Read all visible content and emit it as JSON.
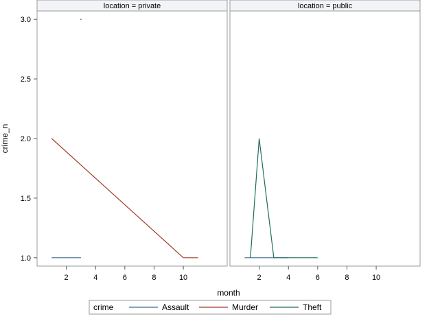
{
  "chart_data": {
    "type": "line",
    "xlabel": "month",
    "ylabel": "crime_n",
    "xlim": [
      0,
      13
    ],
    "ylim": [
      0.93,
      3.07
    ],
    "x_ticks": [
      2,
      4,
      6,
      8,
      10
    ],
    "y_ticks": [
      1.0,
      1.5,
      2.0,
      2.5,
      3.0
    ],
    "y_tick_labels": [
      "1.0",
      "1.5",
      "2.0",
      "2.5",
      "3.0"
    ],
    "grid": false,
    "legend_position": "bottom",
    "legend": {
      "title": "crime",
      "entries": [
        {
          "name": "Assault",
          "color": "#3a6e8f"
        },
        {
          "name": "Murder",
          "color": "#a23b2a"
        },
        {
          "name": "Theft",
          "color": "#1f6b5c"
        }
      ]
    },
    "panels": [
      {
        "title": "location = private",
        "series": [
          {
            "name": "Assault",
            "color": "#3a6e8f",
            "x": [
              1,
              3
            ],
            "y": [
              1,
              1
            ]
          },
          {
            "name": "Murder",
            "color": "#a23b2a",
            "x": [
              1,
              10,
              11
            ],
            "y": [
              2,
              1,
              1
            ]
          },
          {
            "name": "Theft",
            "color": "#1f6b5c",
            "x": [
              3
            ],
            "y": [
              3
            ]
          }
        ]
      },
      {
        "title": "location = public",
        "series": [
          {
            "name": "Assault",
            "color": "#3a6e8f",
            "x": [
              1,
              3,
              4
            ],
            "y": [
              1,
              1,
              1
            ]
          },
          {
            "name": "Murder",
            "color": "#a23b2a",
            "x": [],
            "y": []
          },
          {
            "name": "Theft",
            "color": "#1f6b5c",
            "x": [
              1.4,
              2,
              3,
              4,
              6
            ],
            "y": [
              1,
              2,
              1,
              1,
              1
            ]
          }
        ]
      }
    ]
  }
}
